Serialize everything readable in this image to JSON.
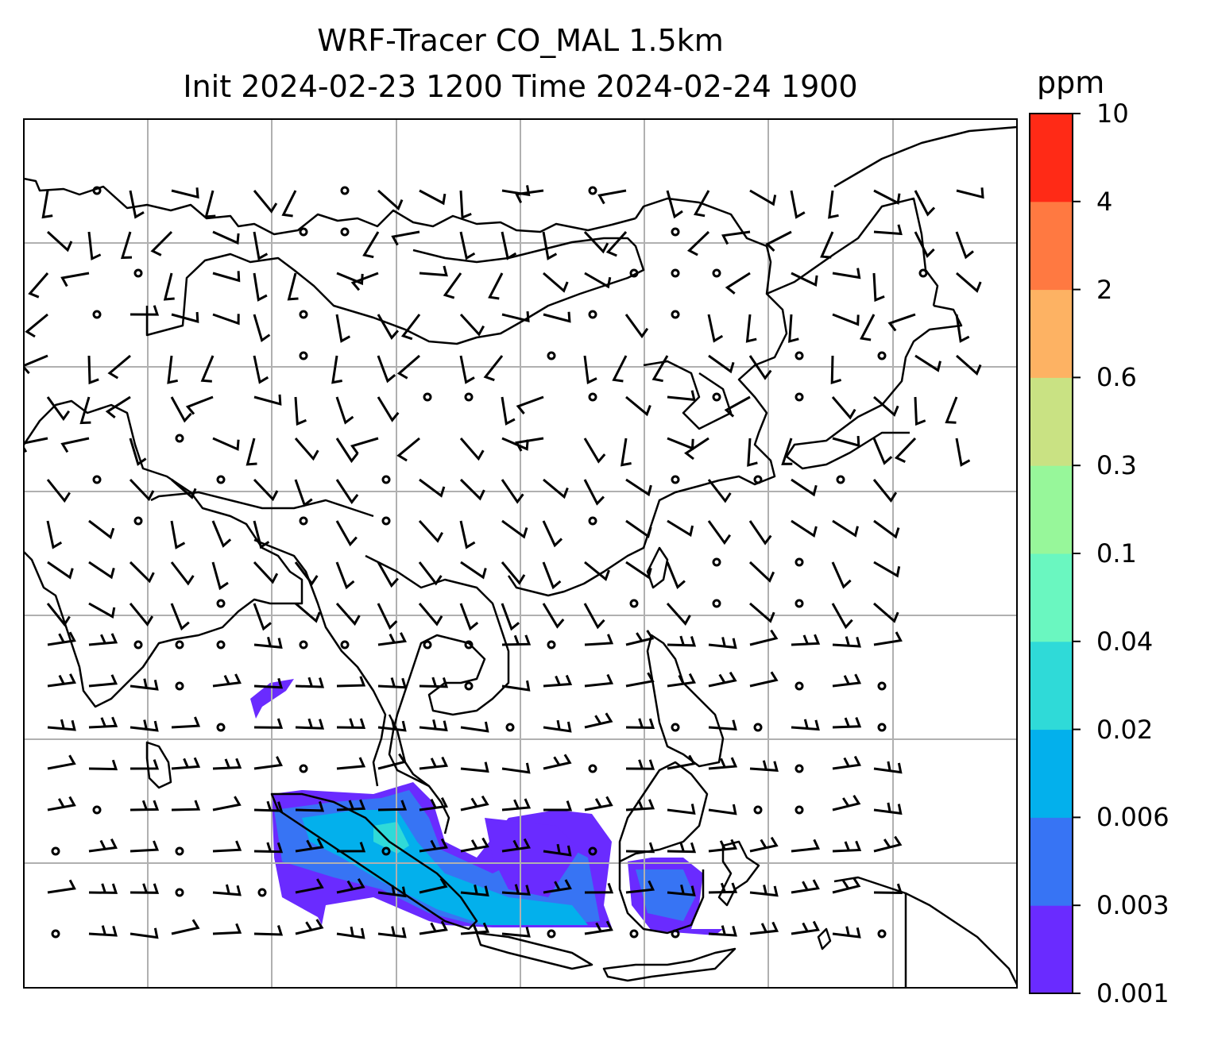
{
  "title": {
    "line1": "WRF-Tracer CO_MAL 1.5km",
    "line2": "Init 2024-02-23 1200 Time 2024-02-24 1900"
  },
  "colorbar": {
    "unit": "ppm",
    "ticks": [
      "0.001",
      "0.003",
      "0.006",
      "0.02",
      "0.04",
      "0.1",
      "0.3",
      "0.6",
      "2",
      "4",
      "10"
    ],
    "colors": [
      "#6a2bff",
      "#3774f4",
      "#03b0ec",
      "#2fdad8",
      "#6af7c0",
      "#97f79a",
      "#c9e283",
      "#fdb263",
      "#ff7941",
      "#ff2a16"
    ]
  },
  "map": {
    "gridline_color": "#b0b0b0",
    "coast_color": "#000000"
  }
}
